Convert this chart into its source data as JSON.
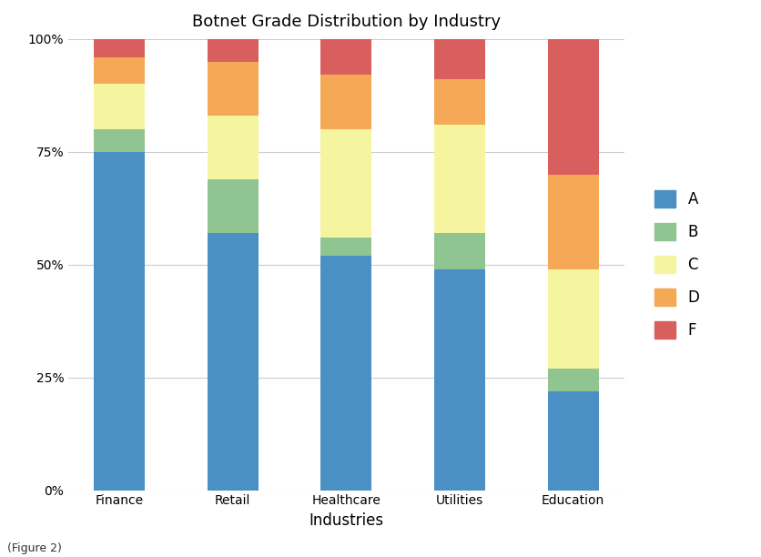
{
  "title": "Botnet Grade Distribution by Industry",
  "xlabel": "Industries",
  "ylabel": "",
  "caption": "(Figure 2)",
  "categories": [
    "Finance",
    "Retail",
    "Healthcare",
    "Utilities",
    "Education"
  ],
  "grades": [
    "A",
    "B",
    "C",
    "D",
    "F"
  ],
  "values": {
    "A": [
      75,
      57,
      52,
      49,
      22
    ],
    "B": [
      5,
      12,
      4,
      8,
      5
    ],
    "C": [
      10,
      14,
      24,
      24,
      22
    ],
    "D": [
      6,
      12,
      12,
      10,
      21
    ],
    "F": [
      4,
      5,
      8,
      9,
      30
    ]
  },
  "colors": {
    "A": "#4A90C4",
    "B": "#90C490",
    "C": "#F5F5A0",
    "D": "#F5A855",
    "F": "#D95F5F"
  },
  "yticks": [
    0,
    25,
    50,
    75,
    100
  ],
  "ytick_labels": [
    "0%",
    "25%",
    "50%",
    "75%",
    "100%"
  ],
  "background_color": "#ffffff",
  "grid_color": "#cccccc",
  "title_fontsize": 13,
  "axis_label_fontsize": 12,
  "tick_fontsize": 10,
  "legend_fontsize": 12,
  "bar_width": 0.45,
  "figsize": [
    8.36,
    6.12
  ],
  "dpi": 100
}
